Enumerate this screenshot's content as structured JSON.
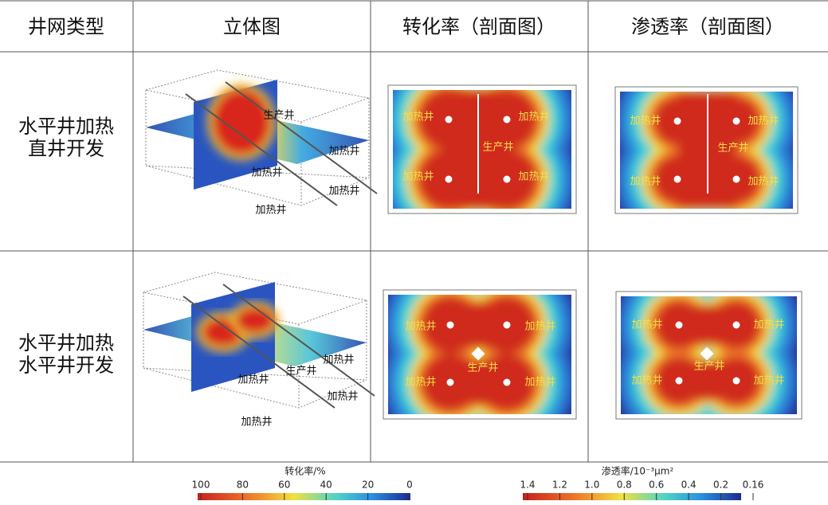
{
  "header": [
    "井网类型",
    "立体图",
    "转化率（剖面图）",
    "渗透率（剖面图）"
  ],
  "rows": [
    {
      "type": [
        "水平井加热",
        "直井开发"
      ],
      "view_3d_labels": [
        "生产井",
        "加热井",
        "加热井",
        "加热井",
        "加热井"
      ],
      "conversion_labels": [
        "加热井",
        "加热井",
        "生产井",
        "加热井",
        "加热井"
      ],
      "permeability_labels": [
        "加热井",
        "加热井",
        "生产井",
        "加热井",
        "加热井"
      ]
    },
    {
      "type": [
        "水平井加热",
        "水平井开发"
      ],
      "view_3d_labels": [
        "加热井",
        "生产井",
        "加热井",
        "加热井",
        "加热井"
      ],
      "conversion_labels": [
        "加热井",
        "加热井",
        "生产井",
        "加热井",
        "加热井"
      ],
      "permeability_labels": [
        "加热井",
        "加热井",
        "生产井",
        "加热井",
        "加热井"
      ]
    }
  ],
  "colorbars": [
    {
      "title": "转化率/%",
      "ticks": [
        "100",
        "80",
        "60",
        "40",
        "20",
        "0"
      ]
    },
    {
      "title": "渗透率/10⁻³μm²",
      "ticks": [
        "1.4",
        "1.2",
        "1.0",
        "0.8",
        "0.6",
        "0.4",
        "0.2",
        "0.16"
      ]
    }
  ]
}
